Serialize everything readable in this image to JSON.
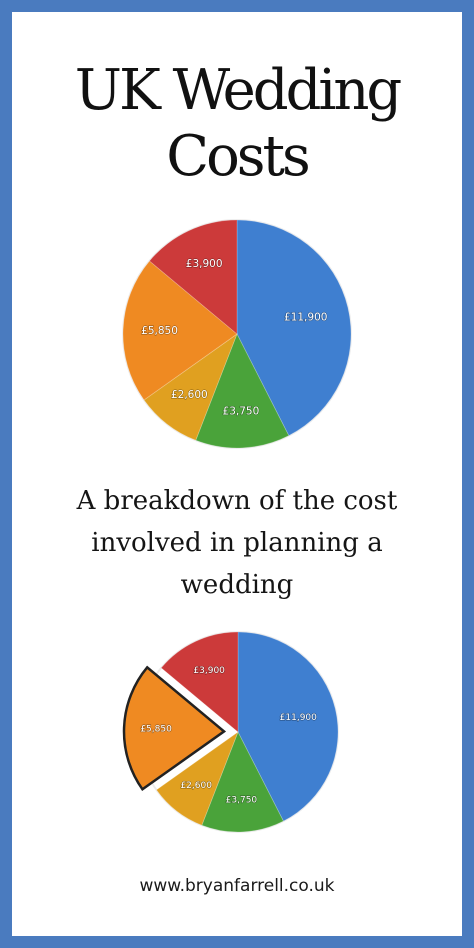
{
  "title": {
    "line1": "UK Wedding",
    "line2": "Costs"
  },
  "subtitle": {
    "line1": "A breakdown of the cost",
    "line2": "involved in planning a",
    "line3": "wedding"
  },
  "footer": {
    "url": "www.bryanfarrell.co.uk"
  },
  "colors": {
    "border": "#4a7bbf"
  },
  "chart_data": [
    {
      "type": "pie",
      "slices": [
        {
          "label": "£11,900",
          "value": 11900,
          "color": "#3f7fd0"
        },
        {
          "label": "£3,750",
          "value": 3750,
          "color": "#4aa33a"
        },
        {
          "label": "£2,600",
          "value": 2600,
          "color": "#e0a020"
        },
        {
          "label": "£5,850",
          "value": 5850,
          "color": "#ef8a22"
        },
        {
          "label": "£3,900",
          "value": 3900,
          "color": "#cc3a3a"
        }
      ]
    },
    {
      "type": "pie",
      "exploded": "£5,850",
      "slices": [
        {
          "label": "£11,900",
          "value": 11900,
          "color": "#3f7fd0"
        },
        {
          "label": "£3,750",
          "value": 3750,
          "color": "#4aa33a"
        },
        {
          "label": "£2,600",
          "value": 2600,
          "color": "#e0a020"
        },
        {
          "label": "£5,850",
          "value": 5850,
          "color": "#ef8a22"
        },
        {
          "label": "£3,900",
          "value": 3900,
          "color": "#cc3a3a"
        }
      ]
    }
  ]
}
